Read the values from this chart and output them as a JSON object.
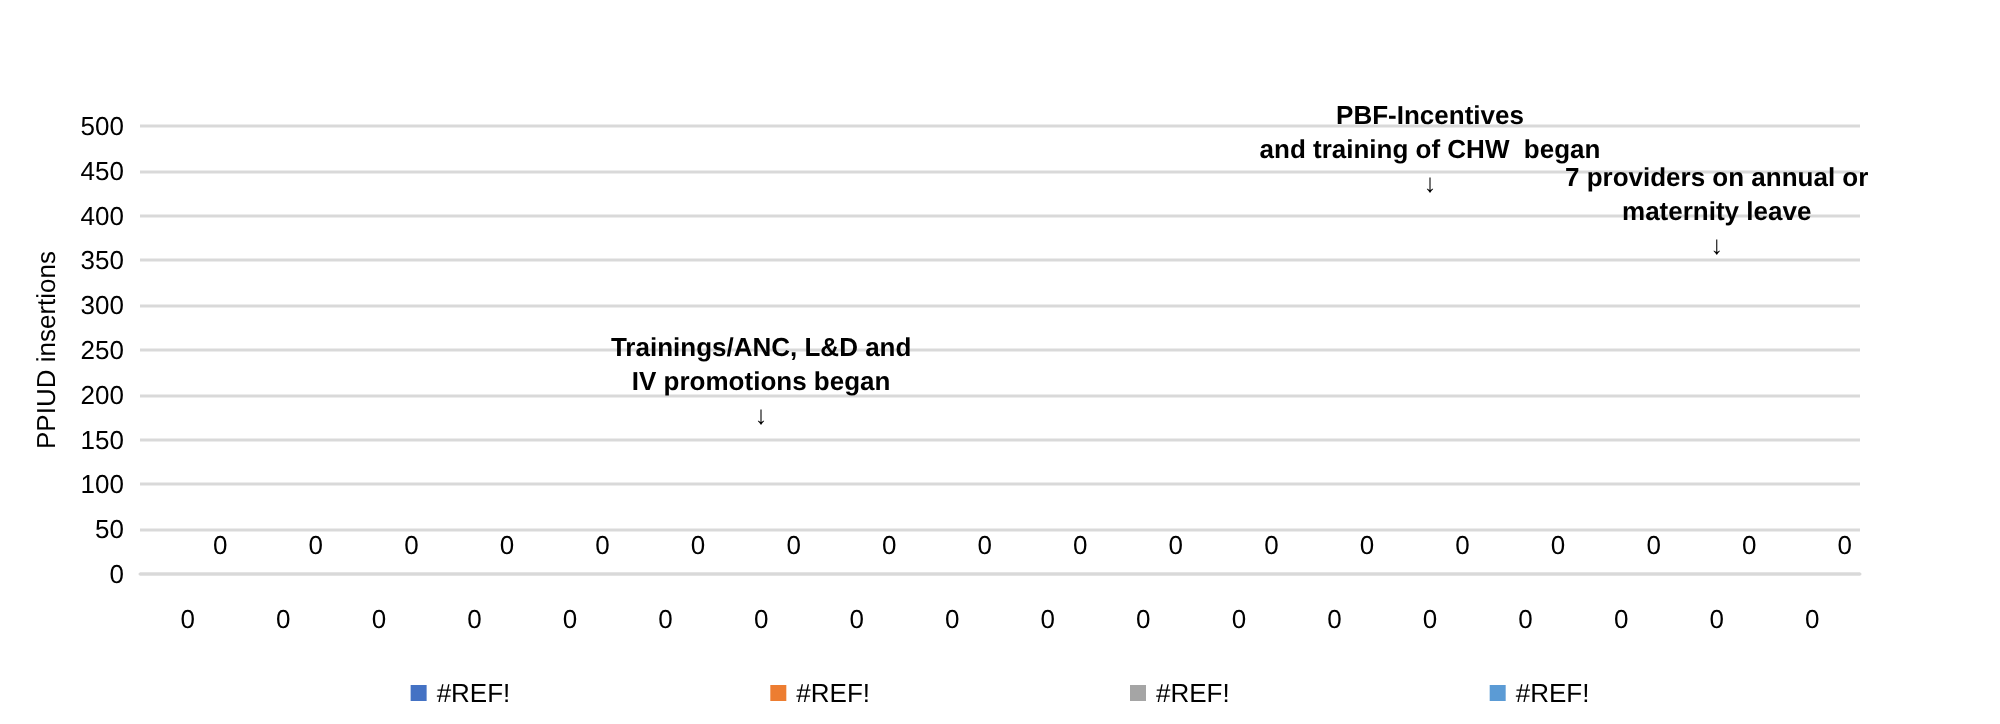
{
  "chart_data": {
    "type": "bar",
    "ylabel": "PPIUD insertions",
    "categories": [
      "0",
      "0",
      "0",
      "0",
      "0",
      "0",
      "0",
      "0",
      "0",
      "0",
      "0",
      "0",
      "0",
      "0",
      "0",
      "0",
      "0",
      "0"
    ],
    "series": [
      {
        "name": "#REF!",
        "color": "#4472c4",
        "values": [
          null,
          null,
          null,
          null,
          null,
          null,
          null,
          null,
          null,
          null,
          null,
          null,
          null,
          null,
          null,
          null,
          null,
          null
        ]
      },
      {
        "name": "#REF!",
        "color": "#ed7d31",
        "values": [
          null,
          null,
          null,
          null,
          null,
          null,
          null,
          null,
          null,
          null,
          null,
          null,
          null,
          null,
          null,
          null,
          null,
          null
        ]
      },
      {
        "name": "#REF!",
        "color": "#a5a5a5",
        "values": [
          null,
          null,
          null,
          null,
          null,
          null,
          null,
          null,
          null,
          null,
          null,
          null,
          null,
          null,
          null,
          null,
          null,
          null
        ]
      },
      {
        "name": "#REF!",
        "color": "#5b9bd5",
        "values": [
          null,
          null,
          null,
          null,
          null,
          null,
          null,
          null,
          null,
          null,
          null,
          null,
          null,
          null,
          null,
          null,
          null,
          null
        ]
      },
      {
        "color": "#ffc000",
        "values": [
          0,
          0,
          0,
          0,
          0,
          0,
          0,
          0,
          0,
          0,
          0,
          0,
          0,
          0,
          0,
          0,
          0,
          0
        ]
      }
    ],
    "data_labels": true,
    "ylim": [
      0,
      500
    ],
    "yticks": [
      0,
      50,
      100,
      150,
      200,
      250,
      300,
      350,
      400,
      450,
      500
    ],
    "grid": "y",
    "legend": "bottom",
    "annotations": [
      "Trainings/ANC, L&D and\nIV promotions began\n↓",
      "PBF-Incentives\nand training of CHW  began\n↓",
      "7 providers on annual or\nmaternity leave\n↓"
    ]
  }
}
